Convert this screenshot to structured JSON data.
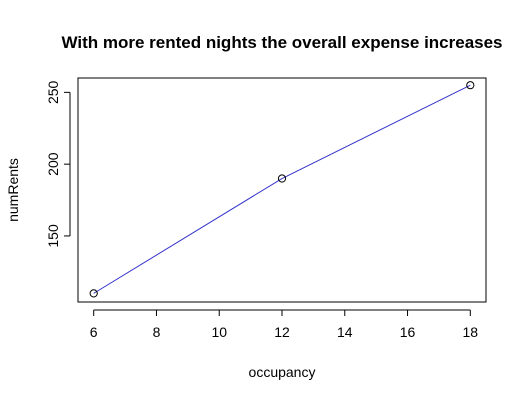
{
  "chart_data": {
    "type": "line",
    "title": "With more rented nights the overall expense increases",
    "xlabel": "occupancy",
    "ylabel": "numRents",
    "x": [
      6,
      12,
      18
    ],
    "series": [
      {
        "values": [
          110,
          190,
          255
        ]
      }
    ],
    "xticks": [
      6,
      8,
      10,
      12,
      14,
      16,
      18
    ],
    "yticks": [
      150,
      200,
      250
    ],
    "xlim": [
      5.5,
      18.5
    ],
    "ylim": [
      104,
      260
    ],
    "grid": false,
    "line_color": "#3333cc",
    "marker": "open-circle"
  }
}
